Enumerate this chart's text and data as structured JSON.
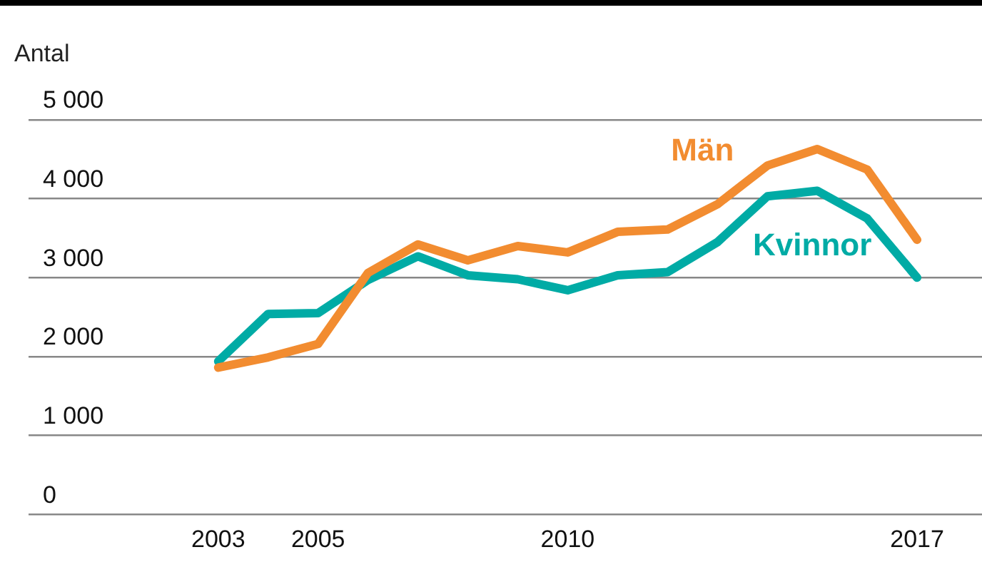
{
  "chart_data": {
    "type": "line",
    "ylabel": "Antal",
    "x": [
      2003,
      2004,
      2005,
      2006,
      2007,
      2008,
      2009,
      2010,
      2011,
      2012,
      2013,
      2014,
      2015,
      2016,
      2017
    ],
    "series": [
      {
        "name": "Män",
        "color": "#f28c30",
        "values": [
          1860,
          1990,
          2160,
          3060,
          3420,
          3220,
          3400,
          3320,
          3580,
          3610,
          3930,
          4420,
          4630,
          4370,
          3480
        ]
      },
      {
        "name": "Kvinnor",
        "color": "#00aba5",
        "values": [
          1940,
          2540,
          2550,
          2970,
          3270,
          3030,
          2980,
          2840,
          3030,
          3070,
          3450,
          4030,
          4100,
          3750,
          3000
        ]
      }
    ],
    "xlim": [
      1999.2,
      2018.3
    ],
    "xticks": [
      2003,
      2005,
      2010,
      2017
    ],
    "ylim": [
      0,
      5000
    ],
    "yticks": [
      {
        "value": 0,
        "label": "0"
      },
      {
        "value": 1000,
        "label": "1 000"
      },
      {
        "value": 2000,
        "label": "2 000"
      },
      {
        "value": 3000,
        "label": "3 000"
      },
      {
        "value": 4000,
        "label": "4 000"
      },
      {
        "value": 5000,
        "label": "5 000"
      }
    ],
    "grid": "y",
    "legend": false,
    "marker": "none",
    "line_style": "solid"
  }
}
